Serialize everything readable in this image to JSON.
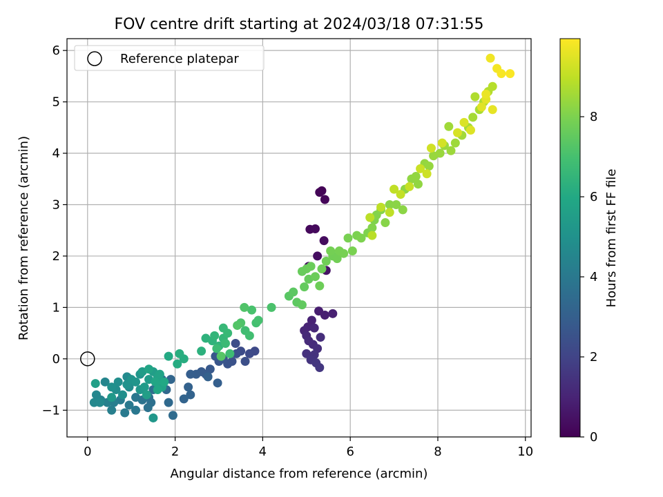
{
  "chart_data": {
    "type": "scatter",
    "title": "FOV centre drift starting at 2024/03/18 07:31:55",
    "xlabel": "Angular distance from reference (arcmin)",
    "ylabel": "Rotation from reference (arcmin)",
    "xlim": [
      -0.47,
      10.13
    ],
    "ylim": [
      -1.52,
      6.23
    ],
    "xticks": [
      0,
      2,
      4,
      6,
      8,
      10
    ],
    "yticks": [
      -1,
      0,
      1,
      2,
      3,
      4,
      5,
      6
    ],
    "xtick_labels": [
      "0",
      "2",
      "4",
      "6",
      "8",
      "10"
    ],
    "ytick_labels": [
      "−1",
      "0",
      "1",
      "2",
      "3",
      "4",
      "5",
      "6"
    ],
    "grid": true,
    "legend": {
      "location": "top-left",
      "entries": [
        "Reference platepar"
      ]
    },
    "colorbar": {
      "label": "Hours from first FF file",
      "range": [
        0,
        9.95
      ],
      "ticks": [
        0,
        2,
        4,
        6,
        8
      ],
      "tick_labels": [
        "0",
        "2",
        "4",
        "6",
        "8"
      ],
      "colormap": "viridis"
    },
    "reference_point": {
      "x": 0.0,
      "y": 0.0,
      "label": "Reference platepar",
      "marker": "open-circle"
    },
    "points": [
      {
        "x": 5.35,
        "y": 3.27,
        "c": 0.05
      },
      {
        "x": 5.3,
        "y": 3.24,
        "c": 0.1
      },
      {
        "x": 5.42,
        "y": 3.1,
        "c": 0.15
      },
      {
        "x": 5.08,
        "y": 2.52,
        "c": 0.2
      },
      {
        "x": 5.2,
        "y": 2.53,
        "c": 0.25
      },
      {
        "x": 5.4,
        "y": 2.3,
        "c": 0.3
      },
      {
        "x": 5.25,
        "y": 2.0,
        "c": 0.35
      },
      {
        "x": 5.05,
        "y": 1.8,
        "c": 0.45
      },
      {
        "x": 5.45,
        "y": 1.72,
        "c": 0.5
      },
      {
        "x": 5.28,
        "y": 0.93,
        "c": 0.8
      },
      {
        "x": 5.42,
        "y": 0.85,
        "c": 0.85
      },
      {
        "x": 5.6,
        "y": 0.88,
        "c": 0.9
      },
      {
        "x": 5.12,
        "y": 0.75,
        "c": 0.95
      },
      {
        "x": 5.03,
        "y": 0.62,
        "c": 1.0
      },
      {
        "x": 4.95,
        "y": 0.55,
        "c": 1.05
      },
      {
        "x": 5.18,
        "y": 0.6,
        "c": 1.1
      },
      {
        "x": 5.0,
        "y": 0.45,
        "c": 1.15
      },
      {
        "x": 5.05,
        "y": 0.35,
        "c": 1.2
      },
      {
        "x": 5.15,
        "y": 0.28,
        "c": 1.25
      },
      {
        "x": 5.32,
        "y": 0.42,
        "c": 1.3
      },
      {
        "x": 5.25,
        "y": 0.2,
        "c": 1.35
      },
      {
        "x": 5.0,
        "y": 0.1,
        "c": 1.4
      },
      {
        "x": 5.18,
        "y": 0.08,
        "c": 1.45
      },
      {
        "x": 5.1,
        "y": -0.02,
        "c": 1.5
      },
      {
        "x": 5.22,
        "y": -0.08,
        "c": 1.55
      },
      {
        "x": 5.3,
        "y": -0.17,
        "c": 1.6
      },
      {
        "x": 3.82,
        "y": 0.15,
        "c": 2.2
      },
      {
        "x": 3.7,
        "y": 0.1,
        "c": 2.25
      },
      {
        "x": 3.5,
        "y": 0.15,
        "c": 2.3
      },
      {
        "x": 3.38,
        "y": 0.3,
        "c": 2.35
      },
      {
        "x": 3.6,
        "y": -0.05,
        "c": 2.4
      },
      {
        "x": 3.4,
        "y": 0.1,
        "c": 2.45
      },
      {
        "x": 3.3,
        "y": -0.05,
        "c": 2.5
      },
      {
        "x": 3.2,
        "y": -0.1,
        "c": 2.55
      },
      {
        "x": 3.1,
        "y": 0.0,
        "c": 2.6
      },
      {
        "x": 3.0,
        "y": -0.05,
        "c": 2.65
      },
      {
        "x": 2.92,
        "y": 0.05,
        "c": 2.7
      },
      {
        "x": 2.8,
        "y": -0.2,
        "c": 2.75
      },
      {
        "x": 2.7,
        "y": -0.3,
        "c": 2.8
      },
      {
        "x": 2.6,
        "y": -0.25,
        "c": 2.85
      },
      {
        "x": 2.48,
        "y": -0.3,
        "c": 2.9
      },
      {
        "x": 2.35,
        "y": -0.3,
        "c": 2.95
      },
      {
        "x": 2.97,
        "y": -0.47,
        "c": 3.0
      },
      {
        "x": 2.75,
        "y": -0.35,
        "c": 3.05
      },
      {
        "x": 2.3,
        "y": -0.55,
        "c": 3.1
      },
      {
        "x": 2.35,
        "y": -0.7,
        "c": 3.15
      },
      {
        "x": 2.2,
        "y": -0.78,
        "c": 3.2
      },
      {
        "x": 1.9,
        "y": -0.4,
        "c": 3.25
      },
      {
        "x": 1.8,
        "y": -0.6,
        "c": 3.35
      },
      {
        "x": 1.85,
        "y": -0.85,
        "c": 3.4
      },
      {
        "x": 1.95,
        "y": -1.1,
        "c": 3.45
      },
      {
        "x": 1.7,
        "y": -0.4,
        "c": 3.5
      },
      {
        "x": 1.5,
        "y": -0.6,
        "c": 3.6
      },
      {
        "x": 1.45,
        "y": -0.85,
        "c": 3.65
      },
      {
        "x": 1.4,
        "y": -0.75,
        "c": 3.7
      },
      {
        "x": 1.38,
        "y": -0.95,
        "c": 3.75
      },
      {
        "x": 1.25,
        "y": -0.8,
        "c": 3.8
      },
      {
        "x": 1.1,
        "y": -0.75,
        "c": 3.9
      },
      {
        "x": 1.1,
        "y": -1.0,
        "c": 3.95
      },
      {
        "x": 0.95,
        "y": -0.9,
        "c": 4.0
      },
      {
        "x": 0.85,
        "y": -1.05,
        "c": 4.05
      },
      {
        "x": 0.75,
        "y": -0.8,
        "c": 4.1
      },
      {
        "x": 0.6,
        "y": -0.85,
        "c": 4.2
      },
      {
        "x": 0.55,
        "y": -1.0,
        "c": 4.25
      },
      {
        "x": 0.45,
        "y": -0.85,
        "c": 4.3
      },
      {
        "x": 0.3,
        "y": -0.8,
        "c": 4.4
      },
      {
        "x": 0.4,
        "y": -0.45,
        "c": 4.5
      },
      {
        "x": 0.2,
        "y": -0.7,
        "c": 4.55
      },
      {
        "x": 0.15,
        "y": -0.85,
        "c": 4.6
      },
      {
        "x": 0.28,
        "y": -0.85,
        "c": 4.65
      },
      {
        "x": 0.9,
        "y": -0.35,
        "c": 4.7
      },
      {
        "x": 0.95,
        "y": -0.55,
        "c": 4.75
      },
      {
        "x": 0.65,
        "y": -0.6,
        "c": 4.8
      },
      {
        "x": 0.7,
        "y": -0.45,
        "c": 4.85
      },
      {
        "x": 0.8,
        "y": -0.7,
        "c": 4.9
      },
      {
        "x": 0.55,
        "y": -0.55,
        "c": 4.95
      },
      {
        "x": 0.9,
        "y": -0.5,
        "c": 5.0
      },
      {
        "x": 1.0,
        "y": -0.4,
        "c": 5.05
      },
      {
        "x": 1.2,
        "y": -0.3,
        "c": 5.1
      },
      {
        "x": 1.1,
        "y": -0.45,
        "c": 5.15
      },
      {
        "x": 1.2,
        "y": -0.6,
        "c": 5.2
      },
      {
        "x": 1.5,
        "y": -1.15,
        "c": 5.25
      },
      {
        "x": 0.55,
        "y": -0.75,
        "c": 5.3
      },
      {
        "x": 1.3,
        "y": -0.55,
        "c": 5.35
      },
      {
        "x": 1.4,
        "y": -0.4,
        "c": 5.4
      },
      {
        "x": 1.25,
        "y": -0.25,
        "c": 5.45
      },
      {
        "x": 1.5,
        "y": -0.25,
        "c": 5.5
      },
      {
        "x": 1.35,
        "y": -0.7,
        "c": 5.55
      },
      {
        "x": 0.18,
        "y": -0.48,
        "c": 5.6
      },
      {
        "x": 1.6,
        "y": -0.35,
        "c": 5.65
      },
      {
        "x": 1.7,
        "y": -0.55,
        "c": 5.7
      },
      {
        "x": 1.65,
        "y": -0.3,
        "c": 5.75
      },
      {
        "x": 1.4,
        "y": -0.2,
        "c": 5.8
      },
      {
        "x": 1.55,
        "y": -0.45,
        "c": 5.85
      },
      {
        "x": 1.6,
        "y": -0.6,
        "c": 5.9
      },
      {
        "x": 1.75,
        "y": -0.45,
        "c": 5.95
      },
      {
        "x": 1.85,
        "y": 0.05,
        "c": 6.0
      },
      {
        "x": 2.05,
        "y": -0.1,
        "c": 6.1
      },
      {
        "x": 2.2,
        "y": 0.0,
        "c": 6.15
      },
      {
        "x": 2.1,
        "y": 0.1,
        "c": 6.2
      },
      {
        "x": 2.6,
        "y": 0.15,
        "c": 6.3
      },
      {
        "x": 2.7,
        "y": 0.4,
        "c": 6.35
      },
      {
        "x": 2.85,
        "y": 0.35,
        "c": 6.4
      },
      {
        "x": 3.0,
        "y": 0.25,
        "c": 6.45
      },
      {
        "x": 2.9,
        "y": 0.45,
        "c": 6.5
      },
      {
        "x": 3.1,
        "y": 0.4,
        "c": 6.55
      },
      {
        "x": 3.1,
        "y": 0.6,
        "c": 6.6
      },
      {
        "x": 3.2,
        "y": 0.5,
        "c": 6.65
      },
      {
        "x": 3.15,
        "y": 0.3,
        "c": 6.7
      },
      {
        "x": 2.95,
        "y": 0.2,
        "c": 6.75
      },
      {
        "x": 3.25,
        "y": 0.1,
        "c": 6.8
      },
      {
        "x": 3.6,
        "y": 0.55,
        "c": 6.85
      },
      {
        "x": 3.7,
        "y": 0.45,
        "c": 6.9
      },
      {
        "x": 3.85,
        "y": 0.7,
        "c": 6.95
      },
      {
        "x": 3.9,
        "y": 0.75,
        "c": 7.0
      },
      {
        "x": 3.75,
        "y": 0.95,
        "c": 7.05
      },
      {
        "x": 4.2,
        "y": 1.0,
        "c": 7.1
      },
      {
        "x": 3.5,
        "y": 0.7,
        "c": 7.15
      },
      {
        "x": 3.58,
        "y": 1.0,
        "c": 7.2
      },
      {
        "x": 3.42,
        "y": 0.65,
        "c": 7.25
      },
      {
        "x": 3.05,
        "y": 0.05,
        "c": 7.3
      },
      {
        "x": 4.6,
        "y": 1.22,
        "c": 7.35
      },
      {
        "x": 4.7,
        "y": 1.3,
        "c": 7.4
      },
      {
        "x": 4.78,
        "y": 1.1,
        "c": 7.45
      },
      {
        "x": 4.9,
        "y": 1.05,
        "c": 7.5
      },
      {
        "x": 4.95,
        "y": 1.4,
        "c": 7.55
      },
      {
        "x": 5.05,
        "y": 1.55,
        "c": 7.6
      },
      {
        "x": 4.9,
        "y": 1.7,
        "c": 7.62
      },
      {
        "x": 5.0,
        "y": 1.75,
        "c": 7.65
      },
      {
        "x": 5.1,
        "y": 1.8,
        "c": 7.68
      },
      {
        "x": 5.2,
        "y": 1.6,
        "c": 7.7
      },
      {
        "x": 5.3,
        "y": 1.42,
        "c": 7.72
      },
      {
        "x": 5.35,
        "y": 1.75,
        "c": 7.75
      },
      {
        "x": 5.45,
        "y": 1.9,
        "c": 7.78
      },
      {
        "x": 5.6,
        "y": 2.0,
        "c": 7.8
      },
      {
        "x": 5.7,
        "y": 1.95,
        "c": 7.82
      },
      {
        "x": 5.55,
        "y": 2.1,
        "c": 7.85
      },
      {
        "x": 5.75,
        "y": 2.1,
        "c": 7.88
      },
      {
        "x": 5.85,
        "y": 2.05,
        "c": 7.9
      },
      {
        "x": 5.95,
        "y": 2.35,
        "c": 7.92
      },
      {
        "x": 6.05,
        "y": 2.1,
        "c": 7.95
      },
      {
        "x": 6.15,
        "y": 2.4,
        "c": 7.98
      },
      {
        "x": 6.25,
        "y": 2.35,
        "c": 8.0
      },
      {
        "x": 6.4,
        "y": 2.45,
        "c": 8.02
      },
      {
        "x": 6.55,
        "y": 2.7,
        "c": 8.05
      },
      {
        "x": 6.5,
        "y": 2.55,
        "c": 8.08
      },
      {
        "x": 6.6,
        "y": 2.8,
        "c": 8.1
      },
      {
        "x": 6.7,
        "y": 2.9,
        "c": 8.12
      },
      {
        "x": 6.8,
        "y": 2.65,
        "c": 8.15
      },
      {
        "x": 6.9,
        "y": 3.0,
        "c": 8.18
      },
      {
        "x": 7.05,
        "y": 3.0,
        "c": 8.2
      },
      {
        "x": 7.2,
        "y": 2.9,
        "c": 8.22
      },
      {
        "x": 7.25,
        "y": 3.3,
        "c": 8.25
      },
      {
        "x": 7.4,
        "y": 3.5,
        "c": 8.28
      },
      {
        "x": 7.55,
        "y": 3.4,
        "c": 8.3
      },
      {
        "x": 7.5,
        "y": 3.55,
        "c": 8.32
      },
      {
        "x": 7.7,
        "y": 3.8,
        "c": 8.35
      },
      {
        "x": 7.8,
        "y": 3.75,
        "c": 8.38
      },
      {
        "x": 7.9,
        "y": 3.95,
        "c": 8.4
      },
      {
        "x": 8.05,
        "y": 4.0,
        "c": 8.42
      },
      {
        "x": 8.15,
        "y": 4.15,
        "c": 8.45
      },
      {
        "x": 8.3,
        "y": 4.05,
        "c": 8.48
      },
      {
        "x": 8.4,
        "y": 4.2,
        "c": 8.5
      },
      {
        "x": 8.25,
        "y": 4.52,
        "c": 8.52
      },
      {
        "x": 8.55,
        "y": 4.35,
        "c": 8.55
      },
      {
        "x": 8.7,
        "y": 4.5,
        "c": 8.58
      },
      {
        "x": 8.8,
        "y": 4.7,
        "c": 8.6
      },
      {
        "x": 8.95,
        "y": 4.85,
        "c": 8.65
      },
      {
        "x": 9.05,
        "y": 5.0,
        "c": 8.7
      },
      {
        "x": 8.85,
        "y": 5.1,
        "c": 8.75
      },
      {
        "x": 9.15,
        "y": 5.2,
        "c": 8.8
      },
      {
        "x": 9.25,
        "y": 5.3,
        "c": 8.85
      },
      {
        "x": 6.5,
        "y": 2.4,
        "c": 8.9
      },
      {
        "x": 6.45,
        "y": 2.75,
        "c": 8.92
      },
      {
        "x": 6.7,
        "y": 2.95,
        "c": 8.95
      },
      {
        "x": 6.9,
        "y": 2.85,
        "c": 8.98
      },
      {
        "x": 7.0,
        "y": 3.3,
        "c": 9.0
      },
      {
        "x": 7.15,
        "y": 3.2,
        "c": 9.05
      },
      {
        "x": 7.35,
        "y": 3.35,
        "c": 9.1
      },
      {
        "x": 7.6,
        "y": 3.7,
        "c": 9.15
      },
      {
        "x": 7.75,
        "y": 3.6,
        "c": 9.2
      },
      {
        "x": 7.85,
        "y": 4.1,
        "c": 9.25
      },
      {
        "x": 8.1,
        "y": 4.2,
        "c": 9.3
      },
      {
        "x": 8.45,
        "y": 4.4,
        "c": 9.35
      },
      {
        "x": 8.6,
        "y": 4.6,
        "c": 9.4
      },
      {
        "x": 8.75,
        "y": 4.45,
        "c": 9.45
      },
      {
        "x": 9.0,
        "y": 4.9,
        "c": 9.5
      },
      {
        "x": 9.1,
        "y": 5.05,
        "c": 9.55
      },
      {
        "x": 9.25,
        "y": 4.85,
        "c": 9.6
      },
      {
        "x": 9.1,
        "y": 5.15,
        "c": 9.65
      },
      {
        "x": 9.2,
        "y": 5.85,
        "c": 9.75
      },
      {
        "x": 9.35,
        "y": 5.65,
        "c": 9.8
      },
      {
        "x": 9.45,
        "y": 5.55,
        "c": 9.85
      },
      {
        "x": 9.65,
        "y": 5.55,
        "c": 9.9
      }
    ]
  }
}
